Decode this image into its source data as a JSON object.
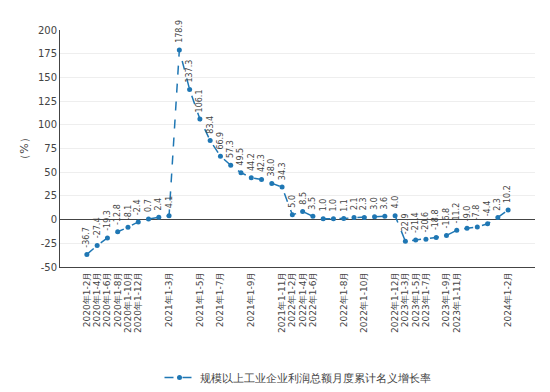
{
  "chart_data": {
    "type": "line",
    "ylabel": "（%）",
    "categories": [
      "2020年1-2月",
      "2020年1-4月",
      "2020年1-6月",
      "2020年1-8月",
      "2020年1-10月",
      "2020年1-12月",
      null,
      null,
      "2021年1-3月",
      null,
      null,
      "2021年1-5月",
      null,
      "2021年1-7月",
      null,
      null,
      "2021年1-9月",
      null,
      null,
      "2021年1-11月",
      "2022年1-2月",
      "2022年1-4月",
      "2022年1-6月",
      null,
      null,
      "2022年1-8月",
      null,
      "2022年1-10月",
      null,
      null,
      "2022年1-12月",
      "2023年1-3月",
      "2023年1-5月",
      "2023年1-7月",
      null,
      "2023年1-9月",
      "2023年1-11月",
      null,
      null,
      null,
      null,
      "2024年1-2月"
    ],
    "series": [
      {
        "name": "规模以上工业企业利润总额月度累计名义增长率",
        "marker": "circle",
        "line_style": "dash",
        "values": [
          -36.7,
          -27.4,
          -19.3,
          -12.8,
          -8.1,
          -2.4,
          0.7,
          2.4,
          4.1,
          178.9,
          137.3,
          106.1,
          83.4,
          66.9,
          57.3,
          49.5,
          44.2,
          42.3,
          38.0,
          34.3,
          5.0,
          8.5,
          3.5,
          1.0,
          1.0,
          1.1,
          2.1,
          2.3,
          3.0,
          3.6,
          4.0,
          -22.9,
          -21.4,
          -20.6,
          -18.8,
          -16.8,
          -11.2,
          -9.0,
          -7.8,
          -4.4,
          2.3,
          10.2
        ],
        "value_labels": [
          "-36.7",
          "-27.4",
          "-19.3",
          "-12.8",
          "-8.1",
          "-2.4",
          "0.7",
          "2.4",
          "4.1",
          "178.9",
          "137.3",
          "106.1",
          "83.4",
          "66.9",
          "57.3",
          "49.5",
          "44.2",
          "42.3",
          "38.0",
          "34.3",
          "5.0",
          "8.5",
          "3.5",
          "1.0",
          "1.0",
          "1.1",
          "2.1",
          "2.3",
          "3.0",
          "3.6",
          "4.0",
          "-22.9",
          "-21.4",
          "-20.6",
          "-18.8",
          "-16.8",
          "-11.2",
          "-9.0",
          "-7.8",
          "-4.4",
          "2.3",
          "10.2"
        ]
      }
    ],
    "ylim": [
      -50,
      200
    ],
    "yticks": [
      -50,
      -25,
      0,
      25,
      50,
      75,
      100,
      125,
      150,
      175,
      200
    ],
    "grid": true,
    "legend": "bottom",
    "data_labels": true
  }
}
